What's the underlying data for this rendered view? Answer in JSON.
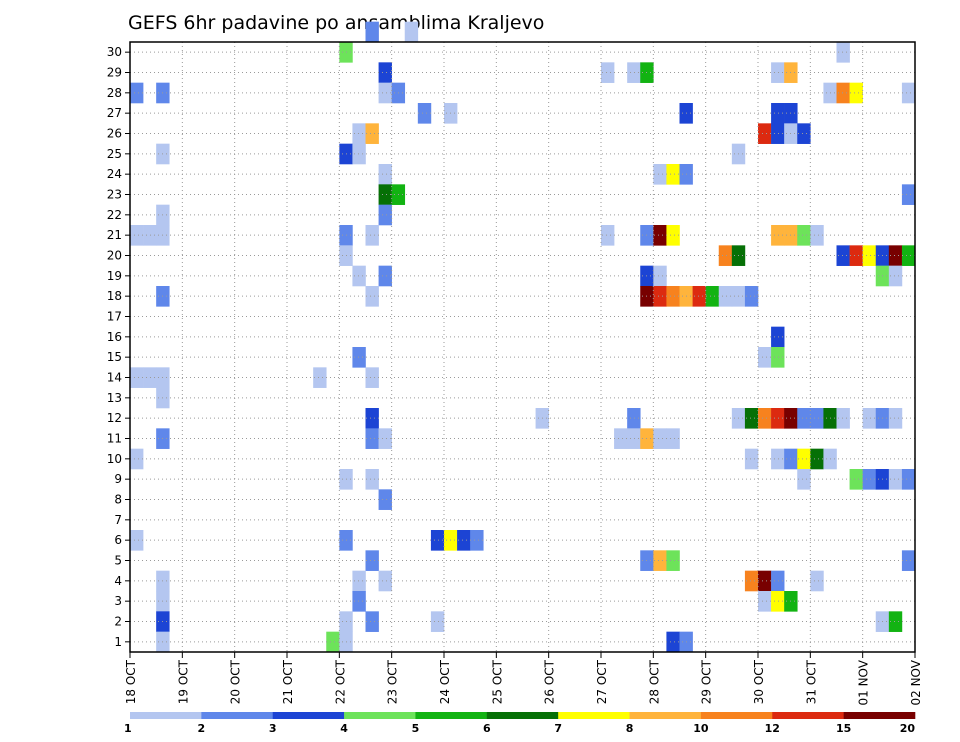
{
  "chart_data": {
    "type": "heatmap",
    "title": "GEFS 6hr padavine po ansamblima Kraljevo",
    "xlabel": "",
    "ylabel": "",
    "x_tick_labels": [
      "18 OCT",
      "19 OCT",
      "20 OCT",
      "21 OCT",
      "22 OCT",
      "23 OCT",
      "24 OCT",
      "25 OCT",
      "26 OCT",
      "27 OCT",
      "28 OCT",
      "29 OCT",
      "30 OCT",
      "31 OCT",
      "01 NOV",
      "02 NOV"
    ],
    "y_tick_labels": [
      "1",
      "2",
      "3",
      "4",
      "5",
      "6",
      "7",
      "8",
      "9",
      "10",
      "11",
      "12",
      "13",
      "14",
      "15",
      "16",
      "17",
      "18",
      "19",
      "20",
      "21",
      "22",
      "23",
      "24",
      "25",
      "26",
      "27",
      "28",
      "29",
      "30"
    ],
    "x_unit": "6-hour step (0 = 18 OCT 00Z)",
    "x_range": [
      0,
      60
    ],
    "y_range": [
      0,
      30
    ],
    "grid": "dotted",
    "legend": {
      "position": "bottom",
      "colors": [
        "#b4c6f0",
        "#5f87ea",
        "#1c44d4",
        "#6de35a",
        "#12b312",
        "#067006",
        "#ffff00",
        "#ffb43c",
        "#f7821e",
        "#dc2a10",
        "#780000"
      ],
      "labels": [
        "1",
        "2",
        "3",
        "4",
        "5",
        "6",
        "7",
        "8",
        "10",
        "12",
        "15",
        "20"
      ]
    },
    "cells": [
      {
        "x": 18,
        "y": 30,
        "v": 2
      },
      {
        "x": 21,
        "y": 30,
        "v": 1
      },
      {
        "x": 16,
        "y": 29,
        "v": 4
      },
      {
        "x": 54,
        "y": 29,
        "v": 1
      },
      {
        "x": 19,
        "y": 28,
        "v": 3
      },
      {
        "x": 36,
        "y": 28,
        "v": 1
      },
      {
        "x": 38,
        "y": 28,
        "v": 1
      },
      {
        "x": 39,
        "y": 28,
        "v": 5
      },
      {
        "x": 49,
        "y": 28,
        "v": 1
      },
      {
        "x": 50,
        "y": 28,
        "v": 8
      },
      {
        "x": 0,
        "y": 27,
        "v": 2
      },
      {
        "x": 2,
        "y": 27,
        "v": 2
      },
      {
        "x": 19,
        "y": 27,
        "v": 1
      },
      {
        "x": 20,
        "y": 27,
        "v": 2
      },
      {
        "x": 53,
        "y": 27,
        "v": 1
      },
      {
        "x": 54,
        "y": 27,
        "v": 10
      },
      {
        "x": 55,
        "y": 27,
        "v": 7
      },
      {
        "x": 59,
        "y": 27,
        "v": 1
      },
      {
        "x": 22,
        "y": 26,
        "v": 2
      },
      {
        "x": 24,
        "y": 26,
        "v": 1
      },
      {
        "x": 42,
        "y": 26,
        "v": 3
      },
      {
        "x": 49,
        "y": 26,
        "v": 3
      },
      {
        "x": 50,
        "y": 26,
        "v": 3
      },
      {
        "x": 17,
        "y": 25,
        "v": 1
      },
      {
        "x": 18,
        "y": 25,
        "v": 8
      },
      {
        "x": 48,
        "y": 25,
        "v": 12
      },
      {
        "x": 49,
        "y": 25,
        "v": 3
      },
      {
        "x": 50,
        "y": 25,
        "v": 1
      },
      {
        "x": 51,
        "y": 25,
        "v": 3
      },
      {
        "x": 2,
        "y": 24,
        "v": 1
      },
      {
        "x": 16,
        "y": 24,
        "v": 3
      },
      {
        "x": 17,
        "y": 24,
        "v": 1
      },
      {
        "x": 46,
        "y": 24,
        "v": 1
      },
      {
        "x": 19,
        "y": 23,
        "v": 1
      },
      {
        "x": 40,
        "y": 23,
        "v": 1
      },
      {
        "x": 41,
        "y": 23,
        "v": 7
      },
      {
        "x": 42,
        "y": 23,
        "v": 2
      },
      {
        "x": 19,
        "y": 22,
        "v": 6
      },
      {
        "x": 20,
        "y": 22,
        "v": 5
      },
      {
        "x": 59,
        "y": 22,
        "v": 2
      },
      {
        "x": 2,
        "y": 21,
        "v": 1
      },
      {
        "x": 19,
        "y": 21,
        "v": 2
      },
      {
        "x": 0,
        "y": 20,
        "v": 1
      },
      {
        "x": 1,
        "y": 20,
        "v": 1
      },
      {
        "x": 2,
        "y": 20,
        "v": 1
      },
      {
        "x": 16,
        "y": 20,
        "v": 2
      },
      {
        "x": 18,
        "y": 20,
        "v": 1
      },
      {
        "x": 36,
        "y": 20,
        "v": 1
      },
      {
        "x": 39,
        "y": 20,
        "v": 2
      },
      {
        "x": 40,
        "y": 20,
        "v": 15
      },
      {
        "x": 41,
        "y": 20,
        "v": 7
      },
      {
        "x": 49,
        "y": 20,
        "v": 8
      },
      {
        "x": 50,
        "y": 20,
        "v": 8
      },
      {
        "x": 51,
        "y": 20,
        "v": 4
      },
      {
        "x": 52,
        "y": 20,
        "v": 1
      },
      {
        "x": 45,
        "y": 19,
        "v": 10
      },
      {
        "x": 46,
        "y": 19,
        "v": 6
      },
      {
        "x": 54,
        "y": 19,
        "v": 3
      },
      {
        "x": 55,
        "y": 19,
        "v": 12
      },
      {
        "x": 56,
        "y": 19,
        "v": 7
      },
      {
        "x": 57,
        "y": 19,
        "v": 3
      },
      {
        "x": 58,
        "y": 19,
        "v": 15
      },
      {
        "x": 59,
        "y": 19,
        "v": 5
      },
      {
        "x": 16,
        "y": 19,
        "v": 1
      },
      {
        "x": 17,
        "y": 18,
        "v": 1
      },
      {
        "x": 19,
        "y": 18,
        "v": 2
      },
      {
        "x": 39,
        "y": 18,
        "v": 3
      },
      {
        "x": 40,
        "y": 18,
        "v": 1
      },
      {
        "x": 57,
        "y": 18,
        "v": 4
      },
      {
        "x": 58,
        "y": 18,
        "v": 1
      },
      {
        "x": 2,
        "y": 17,
        "v": 2
      },
      {
        "x": 18,
        "y": 17,
        "v": 1
      },
      {
        "x": 39,
        "y": 17,
        "v": 15
      },
      {
        "x": 40,
        "y": 17,
        "v": 12
      },
      {
        "x": 41,
        "y": 17,
        "v": 10
      },
      {
        "x": 42,
        "y": 17,
        "v": 8
      },
      {
        "x": 43,
        "y": 17,
        "v": 12
      },
      {
        "x": 44,
        "y": 17,
        "v": 5
      },
      {
        "x": 45,
        "y": 17,
        "v": 1
      },
      {
        "x": 46,
        "y": 17,
        "v": 1
      },
      {
        "x": 47,
        "y": 17,
        "v": 2
      },
      {
        "x": 49,
        "y": 15,
        "v": 3
      },
      {
        "x": 17,
        "y": 14,
        "v": 2
      },
      {
        "x": 48,
        "y": 14,
        "v": 1
      },
      {
        "x": 49,
        "y": 14,
        "v": 4
      },
      {
        "x": 0,
        "y": 13,
        "v": 1
      },
      {
        "x": 1,
        "y": 13,
        "v": 1
      },
      {
        "x": 2,
        "y": 13,
        "v": 1
      },
      {
        "x": 14,
        "y": 13,
        "v": 1
      },
      {
        "x": 18,
        "y": 13,
        "v": 1
      },
      {
        "x": 2,
        "y": 12,
        "v": 1
      },
      {
        "x": 18,
        "y": 11,
        "v": 3
      },
      {
        "x": 31,
        "y": 11,
        "v": 1
      },
      {
        "x": 38,
        "y": 11,
        "v": 2
      },
      {
        "x": 46,
        "y": 11,
        "v": 1
      },
      {
        "x": 47,
        "y": 11,
        "v": 6
      },
      {
        "x": 48,
        "y": 11,
        "v": 10
      },
      {
        "x": 49,
        "y": 11,
        "v": 12
      },
      {
        "x": 50,
        "y": 11,
        "v": 15
      },
      {
        "x": 51,
        "y": 11,
        "v": 2
      },
      {
        "x": 52,
        "y": 11,
        "v": 2
      },
      {
        "x": 53,
        "y": 11,
        "v": 6
      },
      {
        "x": 54,
        "y": 11,
        "v": 1
      },
      {
        "x": 56,
        "y": 11,
        "v": 1
      },
      {
        "x": 57,
        "y": 11,
        "v": 2
      },
      {
        "x": 58,
        "y": 11,
        "v": 1
      },
      {
        "x": 2,
        "y": 10,
        "v": 2
      },
      {
        "x": 18,
        "y": 10,
        "v": 2
      },
      {
        "x": 19,
        "y": 10,
        "v": 1
      },
      {
        "x": 37,
        "y": 10,
        "v": 1
      },
      {
        "x": 38,
        "y": 10,
        "v": 1
      },
      {
        "x": 39,
        "y": 10,
        "v": 8
      },
      {
        "x": 40,
        "y": 10,
        "v": 1
      },
      {
        "x": 41,
        "y": 10,
        "v": 1
      },
      {
        "x": 0,
        "y": 9,
        "v": 1
      },
      {
        "x": 47,
        "y": 9,
        "v": 1
      },
      {
        "x": 49,
        "y": 9,
        "v": 1
      },
      {
        "x": 50,
        "y": 9,
        "v": 2
      },
      {
        "x": 51,
        "y": 9,
        "v": 7
      },
      {
        "x": 52,
        "y": 9,
        "v": 6
      },
      {
        "x": 53,
        "y": 9,
        "v": 1
      },
      {
        "x": 16,
        "y": 8,
        "v": 1
      },
      {
        "x": 18,
        "y": 8,
        "v": 1
      },
      {
        "x": 51,
        "y": 8,
        "v": 1
      },
      {
        "x": 55,
        "y": 8,
        "v": 4
      },
      {
        "x": 56,
        "y": 8,
        "v": 2
      },
      {
        "x": 57,
        "y": 8,
        "v": 3
      },
      {
        "x": 58,
        "y": 8,
        "v": 1
      },
      {
        "x": 59,
        "y": 8,
        "v": 2
      },
      {
        "x": 19,
        "y": 7,
        "v": 2
      },
      {
        "x": 0,
        "y": 5,
        "v": 1
      },
      {
        "x": 16,
        "y": 5,
        "v": 2
      },
      {
        "x": 23,
        "y": 5,
        "v": 3
      },
      {
        "x": 24,
        "y": 5,
        "v": 7
      },
      {
        "x": 25,
        "y": 5,
        "v": 3
      },
      {
        "x": 26,
        "y": 5,
        "v": 2
      },
      {
        "x": 18,
        "y": 4,
        "v": 2
      },
      {
        "x": 39,
        "y": 4,
        "v": 2
      },
      {
        "x": 40,
        "y": 4,
        "v": 8
      },
      {
        "x": 41,
        "y": 4,
        "v": 4
      },
      {
        "x": 59,
        "y": 4,
        "v": 2
      },
      {
        "x": 2,
        "y": 3,
        "v": 1
      },
      {
        "x": 17,
        "y": 3,
        "v": 1
      },
      {
        "x": 19,
        "y": 3,
        "v": 1
      },
      {
        "x": 47,
        "y": 3,
        "v": 10
      },
      {
        "x": 48,
        "y": 3,
        "v": 15
      },
      {
        "x": 49,
        "y": 3,
        "v": 2
      },
      {
        "x": 52,
        "y": 3,
        "v": 1
      },
      {
        "x": 2,
        "y": 2,
        "v": 1
      },
      {
        "x": 17,
        "y": 2,
        "v": 2
      },
      {
        "x": 48,
        "y": 2,
        "v": 1
      },
      {
        "x": 49,
        "y": 2,
        "v": 7
      },
      {
        "x": 50,
        "y": 2,
        "v": 5
      },
      {
        "x": 2,
        "y": 1,
        "v": 3
      },
      {
        "x": 16,
        "y": 1,
        "v": 1
      },
      {
        "x": 18,
        "y": 1,
        "v": 2
      },
      {
        "x": 23,
        "y": 1,
        "v": 1
      },
      {
        "x": 57,
        "y": 1,
        "v": 1
      },
      {
        "x": 58,
        "y": 1,
        "v": 5
      },
      {
        "x": 2,
        "y": 0,
        "v": 1
      },
      {
        "x": 15,
        "y": 0,
        "v": 4
      },
      {
        "x": 16,
        "y": 0,
        "v": 1
      },
      {
        "x": 41,
        "y": 0,
        "v": 3
      },
      {
        "x": 42,
        "y": 0,
        "v": 2
      }
    ]
  }
}
